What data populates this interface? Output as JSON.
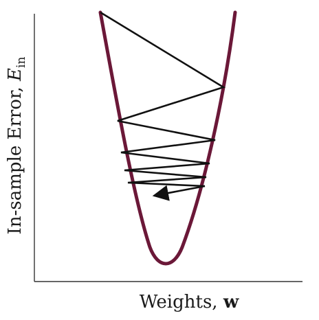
{
  "diagram": {
    "type": "gradient-descent-oscillation",
    "xlabel": {
      "text": "Weights, ",
      "bold_symbol": "w"
    },
    "ylabel": {
      "text": "In-sample Error, ",
      "symbol": "E",
      "subscript": "in"
    },
    "colors": {
      "curve": "#6b1838",
      "path": "#111111",
      "axes": "#333333",
      "text": "#1a1a1a"
    }
  }
}
